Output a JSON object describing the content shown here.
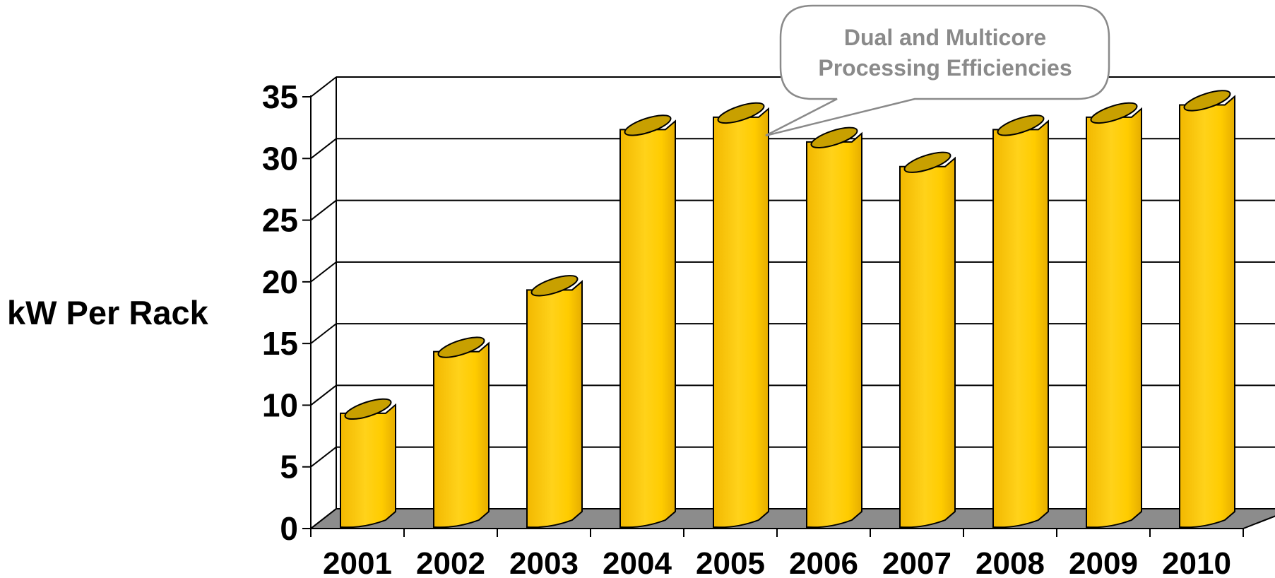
{
  "chart_data": {
    "type": "bar",
    "categories": [
      "2001",
      "2002",
      "2003",
      "2004",
      "2005",
      "2006",
      "2007",
      "2008",
      "2009",
      "2010"
    ],
    "values": [
      9,
      14,
      19,
      32,
      33,
      31,
      29,
      32,
      33,
      34
    ],
    "ylabel": "kW Per Rack",
    "xlabel": "",
    "ylim": [
      0,
      35
    ],
    "yticks": [
      "0",
      "5",
      "10",
      "15",
      "20",
      "25",
      "30",
      "35"
    ],
    "grid": true,
    "annotation": {
      "lines": [
        "Dual and Multicore",
        "Processing Efficiencies"
      ],
      "points_to": "2005"
    },
    "colors": {
      "bar_front": "#ffcc00",
      "bar_top": "#c8a000",
      "floor": "#8c8c8c",
      "callout_text": "#8a8a8a"
    }
  }
}
